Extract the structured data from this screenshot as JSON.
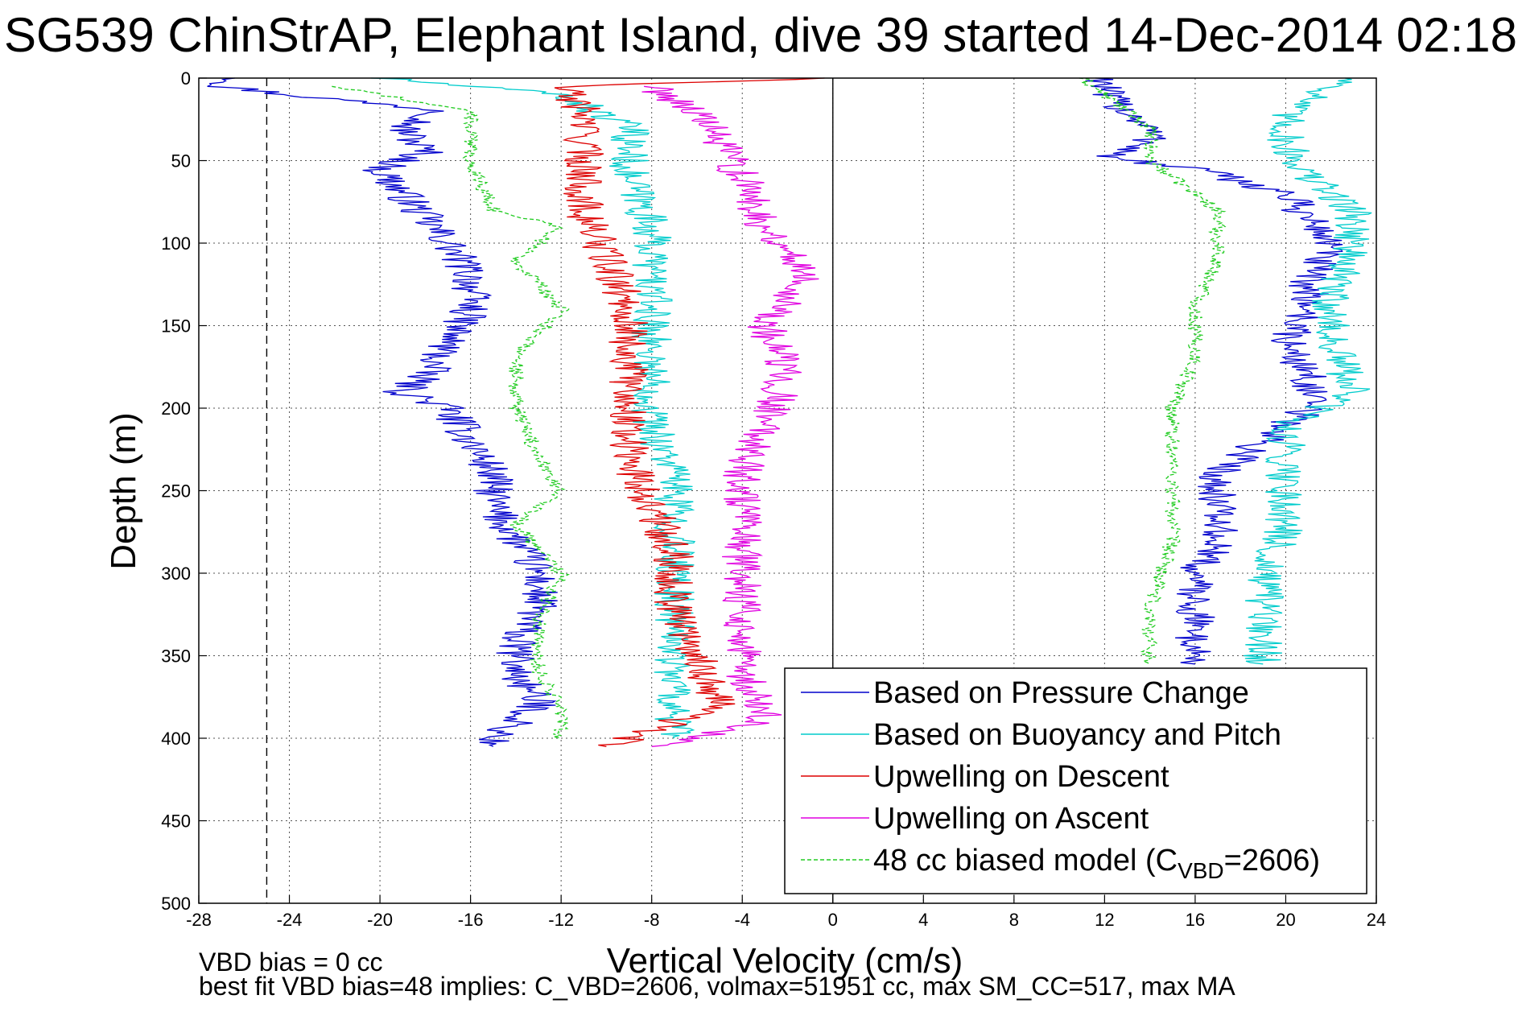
{
  "chart_data": {
    "type": "line",
    "title": "SG539 ChinStrAP, Elephant Island, dive 39 started 14-Dec-2014 02:18",
    "xlabel": "Vertical Velocity (cm/s)",
    "ylabel": "Depth (m)",
    "xlim": [
      -28,
      24
    ],
    "ylim": [
      500,
      0
    ],
    "y_reversed": true,
    "x_ticks": [
      "-28",
      "-24",
      "-20",
      "-16",
      "-12",
      "-8",
      "-4",
      "0",
      "4",
      "8",
      "12",
      "16",
      "20",
      "24"
    ],
    "y_ticks": [
      "0",
      "50",
      "100",
      "150",
      "200",
      "250",
      "300",
      "350",
      "400",
      "450",
      "500"
    ],
    "grid": true,
    "legend_position": "bottom-right",
    "vertical_reference_lines": [
      {
        "x": -25,
        "style": "dashed"
      },
      {
        "x": 0,
        "style": "solid"
      }
    ],
    "series": [
      {
        "name": "Based on Pressure Change",
        "color": "#0000cc",
        "style": "solid",
        "segments": [
          {
            "part": "descent",
            "depth": [
              0,
              5,
              10,
              20,
              30,
              45,
              55,
              70,
              85,
              100,
              120,
              140,
              160,
              180,
              190,
              200,
              220,
              240,
              260,
              280,
              300,
              320,
              340,
              360,
              380,
              400,
              405
            ],
            "x": [
              -26,
              -27,
              -24,
              -17,
              -19,
              -18,
              -20,
              -19,
              -18,
              -17,
              -16,
              -16,
              -17,
              -18,
              -19,
              -17,
              -16,
              -15,
              -15,
              -14,
              -13,
              -13,
              -14,
              -14,
              -13,
              -15,
              -15
            ]
          },
          {
            "part": "ascent",
            "depth": [
              0,
              10,
              20,
              30,
              40,
              48,
              55,
              70,
              85,
              100,
              120,
              140,
              160,
              180,
              200,
              220,
              240,
              260,
              280,
              300,
              320,
              340,
              355
            ],
            "x": [
              12,
              12,
              13,
              14,
              14,
              12,
              16,
              20,
              21,
              22,
              21,
              21,
              20,
              21,
              21,
              19,
              17,
              17,
              17,
              16,
              16,
              16,
              16
            ]
          }
        ]
      },
      {
        "name": "Based on Buoyancy and Pitch",
        "color": "#00cccc",
        "style": "solid",
        "segments": [
          {
            "part": "descent",
            "depth": [
              0,
              10,
              30,
              60,
              90,
              120,
              150,
              180,
              210,
              240,
              260,
              290,
              320,
              350,
              380,
              400
            ],
            "x": [
              -20,
              -12,
              -9,
              -9,
              -8,
              -8,
              -8,
              -8,
              -8,
              -7,
              -7,
              -7,
              -7,
              -7,
              -7,
              -7
            ]
          },
          {
            "part": "ascent",
            "depth": [
              0,
              20,
              40,
              60,
              80,
              100,
              130,
              160,
              190,
              210,
              240,
              270,
              300,
              330,
              355
            ],
            "x": [
              23,
              20,
              20,
              21,
              23,
              23,
              22,
              22,
              23,
              20,
              20,
              20,
              19,
              19,
              19
            ]
          }
        ]
      },
      {
        "name": "Upwelling on Descent",
        "color": "#dd0000",
        "style": "solid",
        "segments": [
          {
            "part": "descent",
            "depth": [
              0,
              5,
              20,
              50,
              80,
              110,
              140,
              170,
              200,
              230,
              260,
              290,
              320,
              350,
              380,
              405
            ],
            "x": [
              0,
              -12,
              -11,
              -11,
              -11,
              -10,
              -9,
              -9,
              -9,
              -9,
              -8,
              -7,
              -7,
              -6,
              -5,
              -10
            ]
          }
        ]
      },
      {
        "name": "Upwelling on Ascent",
        "color": "#e000e0",
        "style": "solid",
        "segments": [
          {
            "part": "ascent",
            "depth": [
              5,
              20,
              40,
              60,
              90,
              120,
              150,
              180,
              210,
              240,
              270,
              300,
              330,
              360,
              390,
              405
            ],
            "x": [
              -8,
              -6,
              -5,
              -4,
              -3,
              -1,
              -3,
              -2,
              -3,
              -4,
              -4,
              -4,
              -4,
              -4,
              -3,
              -8
            ]
          }
        ]
      },
      {
        "name": "48 cc biased model (C",
        "name_subscript": "VBD",
        "name_suffix": "=2606)",
        "color": "#22cc22",
        "style": "dashed",
        "segments": [
          {
            "part": "descent",
            "depth": [
              5,
              20,
              50,
              80,
              90,
              110,
              140,
              170,
              200,
              230,
              250,
              270,
              300,
              330,
              360,
              380,
              400
            ],
            "x": [
              -22,
              -16,
              -16,
              -15,
              -12,
              -14,
              -12,
              -14,
              -14,
              -13,
              -12,
              -14,
              -12,
              -13,
              -13,
              -12,
              -12
            ]
          },
          {
            "part": "ascent",
            "depth": [
              0,
              30,
              50,
              80,
              110,
              140,
              170,
              200,
              240,
              280,
              320,
              355
            ],
            "x": [
              11,
              14,
              14,
              17,
              17,
              16,
              16,
              15,
              15,
              15,
              14,
              14
            ]
          }
        ]
      }
    ],
    "annotations": [
      "VBD bias = 0 cc",
      "best fit VBD bias=48 implies: C_VBD=2606, volmax=51951 cc, max SM_CC=517, max MA"
    ]
  }
}
